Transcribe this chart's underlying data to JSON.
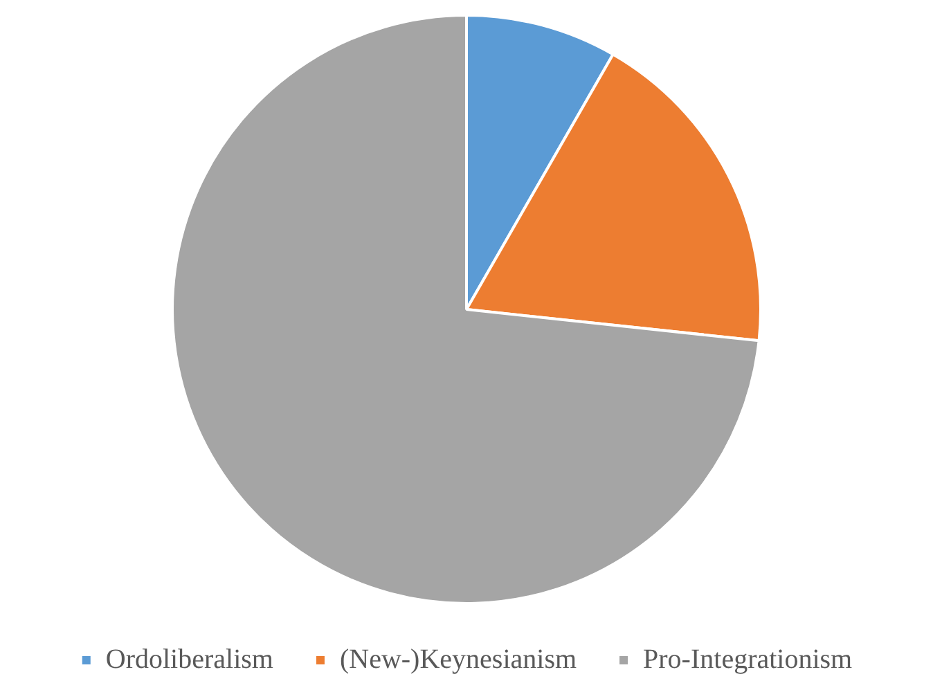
{
  "chart_data": {
    "type": "pie",
    "categories": [
      "Ordoliberalism",
      "(New-)Keynesianism",
      "Pro-Integrationism"
    ],
    "values": [
      8.3,
      18.4,
      73.3
    ],
    "colors": [
      "#5b9bd5",
      "#ed7d31",
      "#a5a5a5"
    ],
    "legend": "bottom"
  }
}
